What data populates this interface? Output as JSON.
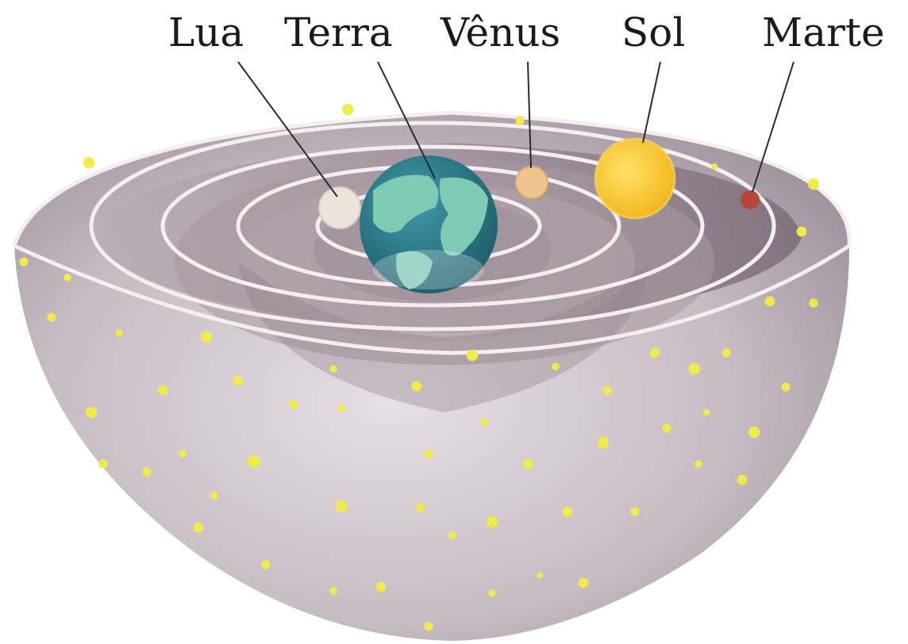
{
  "labels": {
    "lua": "Lua",
    "terra": "Terra",
    "venus": "Vênus",
    "sol": "Sol",
    "marte": "Marte"
  },
  "colors": {
    "shell_light": "#d9d1d6",
    "shell_mid": "#a99ca6",
    "shell_dark": "#6f6270",
    "ring_highlight": "#f4eef0",
    "star": "#f2ea4a",
    "earth_ocean": "#2e7d8a",
    "earth_land": "#7fc8b4",
    "moon": "#e9e3d6",
    "venus": "#f0c48f",
    "sun": "#f7c21c",
    "mars": "#b5473a",
    "label_text": "#1a1a1a"
  },
  "icons": {
    "body_earth": "earth-icon",
    "body_moon": "moon-icon",
    "body_venus": "venus-icon",
    "body_sun": "sun-icon",
    "body_mars": "mars-icon",
    "background_stars": "star-icon"
  }
}
